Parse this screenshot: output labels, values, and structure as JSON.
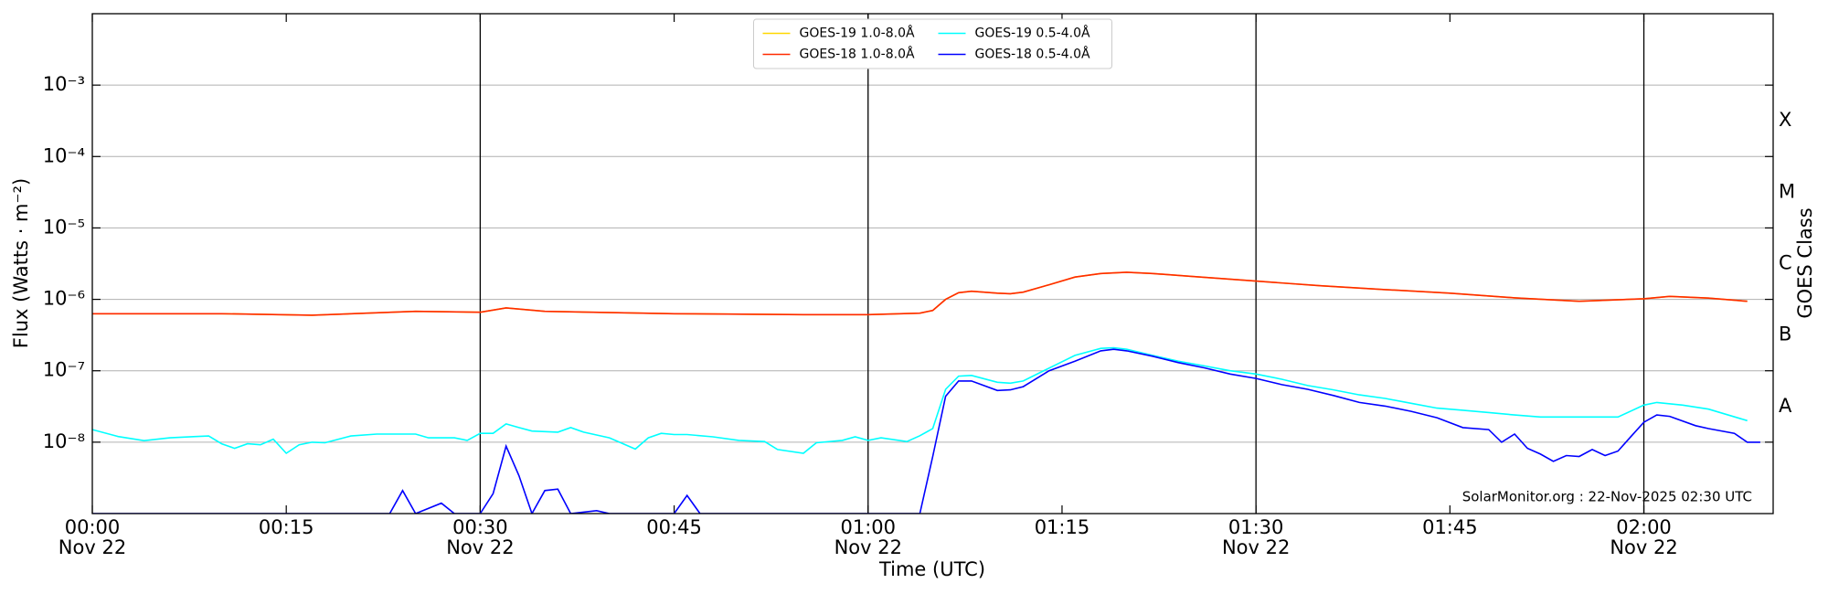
{
  "chart_data": {
    "type": "line",
    "xlabel": "Time (UTC)",
    "ylabel": "Flux (Watts · m⁻²)",
    "y2label": "GOES Class",
    "annotation": "SolarMonitor.org : 22-Nov-2025 02:30 UTC",
    "log_y": true,
    "grid": true,
    "legend": {
      "loc": "upper center",
      "ncol": 2
    },
    "xlim": [
      "00:00",
      "02:10"
    ],
    "xticks": [
      {
        "value": "00:00",
        "label": "00:00",
        "date": "Nov 22"
      },
      "00:15",
      {
        "value": "00:30",
        "label": "00:30",
        "date": "Nov 22"
      },
      "00:45",
      {
        "value": "01:00",
        "label": "01:00",
        "date": "Nov 22"
      },
      "01:15",
      {
        "value": "01:30",
        "label": "01:30",
        "date": "Nov 22"
      },
      "01:45",
      {
        "value": "02:00",
        "label": "02:00",
        "date": "Nov 22"
      }
    ],
    "vlines": [
      "00:30",
      "01:00",
      "01:30",
      "02:00"
    ],
    "ylim": [
      1e-09,
      0.01
    ],
    "yticks": [
      {
        "value": 1e-08,
        "label": "10⁻⁸"
      },
      {
        "value": 1e-07,
        "label": "10⁻⁷"
      },
      {
        "value": 1e-06,
        "label": "10⁻⁶"
      },
      {
        "value": 1e-05,
        "label": "10⁻⁵"
      },
      {
        "value": 0.0001,
        "label": "10⁻⁴"
      },
      {
        "value": 0.001,
        "label": "10⁻³"
      }
    ],
    "y2lim": [
      1e-09,
      0.01
    ],
    "y2ticks": [
      {
        "value": 3.16e-08,
        "label": "A"
      },
      {
        "value": 3.16e-07,
        "label": "B"
      },
      {
        "value": 3.16e-06,
        "label": "C"
      },
      {
        "value": 3.16e-05,
        "label": "M"
      },
      {
        "value": 0.000316,
        "label": "X"
      }
    ],
    "series": [
      {
        "name": "GOES-19 1.0-8.0Å",
        "color": "#ffd700",
        "x": [
          "00:00",
          "00:10",
          "00:17",
          "00:25",
          "00:30",
          "00:32",
          "00:35",
          "00:45",
          "00:55",
          "01:00",
          "01:04",
          "01:05",
          "01:06",
          "01:07",
          "01:08",
          "01:10",
          "01:11",
          "01:12",
          "01:14",
          "01:16",
          "01:18",
          "01:20",
          "01:22",
          "01:25",
          "01:30",
          "01:35",
          "01:40",
          "01:45",
          "01:50",
          "01:55",
          "02:00",
          "02:02",
          "02:05",
          "02:08"
        ],
        "values": [
          6.3e-07,
          6.3e-07,
          6e-07,
          6.8e-07,
          6.6e-07,
          7.6e-07,
          6.8e-07,
          6.3e-07,
          6.1e-07,
          6.1e-07,
          6.4e-07,
          7e-07,
          1e-06,
          1.24e-06,
          1.3e-06,
          1.22e-06,
          1.2e-06,
          1.26e-06,
          1.6e-06,
          2.05e-06,
          2.3e-06,
          2.4e-06,
          2.3e-06,
          2.1e-06,
          1.8e-06,
          1.55e-06,
          1.37e-06,
          1.22e-06,
          1.05e-06,
          9.4e-07,
          1.02e-06,
          1.1e-06,
          1.04e-06,
          9.4e-07
        ]
      },
      {
        "name": "GOES-18 1.0-8.0Å",
        "color": "#ff2a00",
        "x": [
          "00:00",
          "00:10",
          "00:17",
          "00:25",
          "00:30",
          "00:32",
          "00:35",
          "00:45",
          "00:55",
          "01:00",
          "01:04",
          "01:05",
          "01:06",
          "01:07",
          "01:08",
          "01:10",
          "01:11",
          "01:12",
          "01:14",
          "01:16",
          "01:18",
          "01:20",
          "01:22",
          "01:25",
          "01:30",
          "01:35",
          "01:40",
          "01:45",
          "01:50",
          "01:55",
          "02:00",
          "02:02",
          "02:05",
          "02:08"
        ],
        "values": [
          6.3e-07,
          6.3e-07,
          6e-07,
          6.8e-07,
          6.6e-07,
          7.6e-07,
          6.8e-07,
          6.3e-07,
          6.1e-07,
          6.1e-07,
          6.4e-07,
          7e-07,
          1e-06,
          1.24e-06,
          1.3e-06,
          1.22e-06,
          1.2e-06,
          1.26e-06,
          1.6e-06,
          2.05e-06,
          2.3e-06,
          2.4e-06,
          2.3e-06,
          2.1e-06,
          1.8e-06,
          1.55e-06,
          1.37e-06,
          1.22e-06,
          1.05e-06,
          9.4e-07,
          1.02e-06,
          1.1e-06,
          1.04e-06,
          9.4e-07
        ]
      },
      {
        "name": "GOES-19 0.5-4.0Å",
        "color": "#00ffff",
        "x": [
          "00:00",
          "00:02",
          "00:04",
          "00:06",
          "00:08",
          "00:09",
          "00:10",
          "00:11",
          "00:12",
          "00:13",
          "00:14",
          "00:15",
          "00:16",
          "00:17",
          "00:18",
          "00:20",
          "00:22",
          "00:25",
          "00:26",
          "00:28",
          "00:29",
          "00:30",
          "00:31",
          "00:32",
          "00:33",
          "00:34",
          "00:36",
          "00:37",
          "00:38",
          "00:40",
          "00:42",
          "00:43",
          "00:44",
          "00:45",
          "00:46",
          "00:48",
          "00:50",
          "00:52",
          "00:53",
          "00:55",
          "00:56",
          "00:58",
          "00:59",
          "01:00",
          "01:01",
          "01:03",
          "01:04",
          "01:05",
          "01:06",
          "01:07",
          "01:08",
          "01:10",
          "01:11",
          "01:12",
          "01:14",
          "01:16",
          "01:18",
          "01:19",
          "01:20",
          "01:22",
          "01:24",
          "01:26",
          "01:28",
          "01:30",
          "01:32",
          "01:34",
          "01:36",
          "01:38",
          "01:40",
          "01:42",
          "01:44",
          "01:46",
          "01:48",
          "01:50",
          "01:52",
          "01:55",
          "01:58",
          "02:00",
          "02:01",
          "02:03",
          "02:05",
          "02:08"
        ],
        "values": [
          1.5e-08,
          1.2e-08,
          1.05e-08,
          1.15e-08,
          1.2e-08,
          1.22e-08,
          9.5e-09,
          8.2e-09,
          9.5e-09,
          9.2e-09,
          1.1e-08,
          7e-09,
          9.2e-09,
          1e-08,
          9.8e-09,
          1.22e-08,
          1.3e-08,
          1.3e-08,
          1.15e-08,
          1.15e-08,
          1.06e-08,
          1.33e-08,
          1.33e-08,
          1.8e-08,
          1.6e-08,
          1.43e-08,
          1.38e-08,
          1.6e-08,
          1.38e-08,
          1.15e-08,
          8e-09,
          1.15e-08,
          1.33e-08,
          1.28e-08,
          1.28e-08,
          1.19e-08,
          1.06e-08,
          1.02e-08,
          7.9e-09,
          7e-09,
          9.8e-09,
          1.06e-08,
          1.19e-08,
          1.06e-08,
          1.15e-08,
          1.02e-08,
          1.23e-08,
          1.55e-08,
          5.5e-08,
          8.4e-08,
          8.6e-08,
          6.9e-08,
          6.7e-08,
          7.2e-08,
          1.09e-07,
          1.64e-07,
          2.06e-07,
          2.1e-07,
          2e-07,
          1.64e-07,
          1.36e-07,
          1.17e-07,
          1e-07,
          9e-08,
          7.6e-08,
          6.2e-08,
          5.4e-08,
          4.6e-08,
          4.1e-08,
          3.5e-08,
          3e-08,
          2.8e-08,
          2.6e-08,
          2.4e-08,
          2.25e-08,
          2.25e-08,
          2.25e-08,
          3.3e-08,
          3.6e-08,
          3.3e-08,
          2.9e-08,
          2e-08
        ]
      },
      {
        "name": "GOES-18 0.5-4.0Å",
        "color": "#0000ff",
        "x": [
          "00:00",
          "00:23",
          "00:24",
          "00:25",
          "00:27",
          "00:28",
          "00:30",
          "00:31",
          "00:32",
          "00:33",
          "00:34",
          "00:35",
          "00:36",
          "00:37",
          "00:39",
          "00:40",
          "00:45",
          "00:46",
          "00:47",
          "01:04",
          "01:05",
          "01:06",
          "01:07",
          "01:08",
          "01:10",
          "01:11",
          "01:12",
          "01:14",
          "01:16",
          "01:18",
          "01:19",
          "01:20",
          "01:22",
          "01:24",
          "01:26",
          "01:28",
          "01:30",
          "01:32",
          "01:34",
          "01:36",
          "01:38",
          "01:40",
          "01:42",
          "01:44",
          "01:46",
          "01:48",
          "01:49",
          "01:50",
          "01:51",
          "01:52",
          "01:53",
          "01:54",
          "01:55",
          "01:56",
          "01:57",
          "01:58",
          "01:59",
          "02:00",
          "02:01",
          "02:02",
          "02:04",
          "02:05",
          "02:07",
          "02:08",
          "02:09"
        ],
        "values": [
          1e-09,
          1e-09,
          2.1e-09,
          1e-09,
          1.4e-09,
          1e-09,
          1e-09,
          1.9e-09,
          8.8e-09,
          3.4e-09,
          1e-09,
          2.1e-09,
          2.2e-09,
          1e-09,
          1.1e-09,
          1e-09,
          1e-09,
          1.8e-09,
          1e-09,
          1e-09,
          6.3e-09,
          4.4e-08,
          7.2e-08,
          7.2e-08,
          5.3e-08,
          5.4e-08,
          6e-08,
          1e-07,
          1.36e-07,
          1.9e-07,
          2e-07,
          1.9e-07,
          1.6e-07,
          1.3e-07,
          1.1e-07,
          9e-08,
          7.8e-08,
          6.4e-08,
          5.5e-08,
          4.5e-08,
          3.6e-08,
          3.2e-08,
          2.7e-08,
          2.2e-08,
          1.6e-08,
          1.5e-08,
          1e-08,
          1.3e-08,
          8.2e-09,
          6.8e-09,
          5.4e-09,
          6.5e-09,
          6.3e-09,
          7.9e-09,
          6.5e-09,
          7.5e-09,
          1.2e-08,
          1.9e-08,
          2.4e-08,
          2.3e-08,
          1.7e-08,
          1.55e-08,
          1.33e-08,
          1e-08,
          1e-08
        ]
      }
    ]
  }
}
